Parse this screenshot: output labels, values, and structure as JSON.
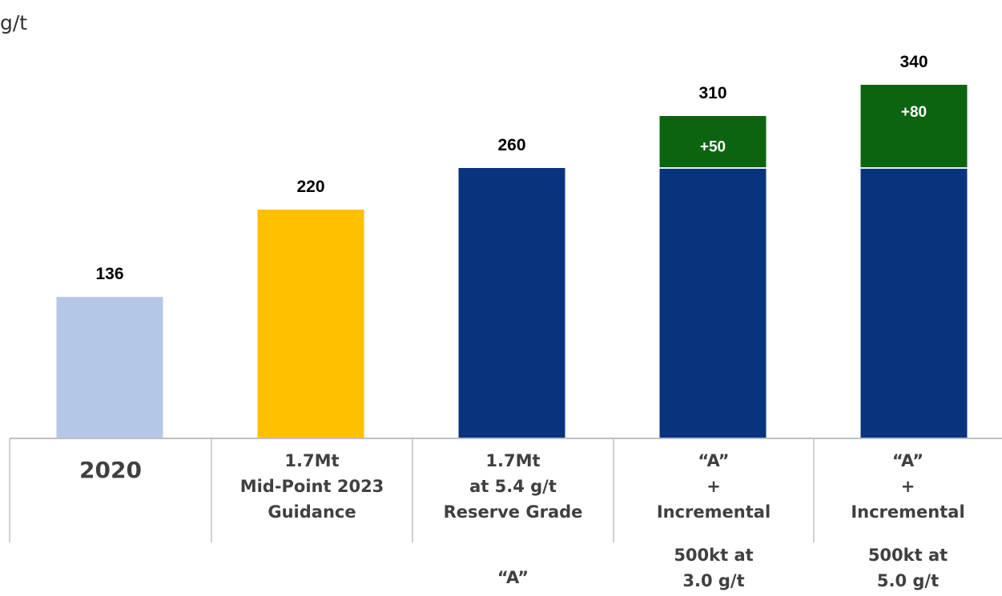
{
  "unit_label": "g/t",
  "chart_data": {
    "type": "bar",
    "stacked": true,
    "categories": [
      "2020",
      "1.7Mt Mid-Point 2023 Guidance",
      "1.7Mt at 5.4 g/t Reserve Grade",
      "“A” + Incremental 500kt at 3.0 g/t",
      "“A” + Incremental 500kt at 5.0 g/t"
    ],
    "series": [
      {
        "values": [
          136,
          220,
          260,
          260,
          260
        ],
        "colors": [
          "#b4c7e7",
          "#ffc000",
          "#0a337e",
          "#0a337e",
          "#0a337e"
        ]
      },
      {
        "values": [
          0,
          0,
          0,
          50,
          80
        ],
        "color": "#0a6410",
        "labels": [
          "",
          "",
          "",
          "+50",
          "+80"
        ]
      }
    ],
    "totals": [
      "136",
      "220",
      "260",
      "310",
      "340"
    ],
    "ylim": [
      0,
      360
    ]
  },
  "table": [
    {
      "lines": [
        "2020"
      ],
      "big": true
    },
    {
      "lines": [
        "1.7Mt",
        "Mid-Point 2023",
        "Guidance"
      ]
    },
    {
      "lines": [
        "1.7Mt",
        "at 5.4 g/t",
        "Reserve Grade"
      ]
    },
    {
      "lines": [
        "“A”",
        "+",
        "Incremental"
      ]
    },
    {
      "lines": [
        "“A”",
        "+",
        "Incremental"
      ]
    }
  ],
  "below_table": [
    {
      "lines": []
    },
    {
      "lines": []
    },
    {
      "lines": [
        "“A”"
      ]
    },
    {
      "lines": [
        "500kt at",
        "3.0 g/t"
      ]
    },
    {
      "lines": [
        "500kt at",
        "5.0 g/t"
      ]
    }
  ]
}
